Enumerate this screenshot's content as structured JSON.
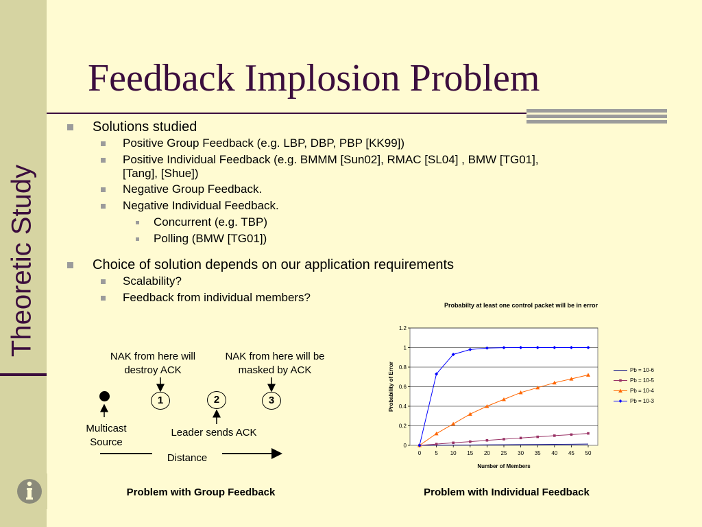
{
  "sidebar": {
    "vertical_title": "Theoretic Study",
    "info_icon": "info-icon"
  },
  "title": "Feedback Implosion Problem",
  "bullets": {
    "b1": "Solutions studied",
    "b1_s1": "Positive Group Feedback (e.g. LBP, DBP, PBP [KK99])",
    "b1_s2_line1": "Positive Individual Feedback (e.g. BMMM [Sun02], RMAC [SL04] , BMW [TG01],",
    "b1_s2_line2": "[Tang], [Shue])",
    "b1_s3": "Negative Group Feedback.",
    "b1_s4": "Negative Individual Feedback.",
    "b1_s4_t1": "Concurrent (e.g. TBP)",
    "b1_s4_t2": "Polling (BMW [TG01])",
    "b2": "Choice of solution depends on our application requirements",
    "b2_s1": "Scalability?",
    "b2_s2": "Feedback from individual members?"
  },
  "diagram": {
    "nak1_line1": "NAK from here will",
    "nak1_line2": "destroy ACK",
    "nak2_line1": "NAK from here will be",
    "nak2_line2": "masked by ACK",
    "source_line1": "Multicast",
    "source_line2": "Source",
    "node1": "1",
    "node2": "2",
    "node3": "3",
    "leader": "Leader sends ACK",
    "distance": "Distance",
    "caption": "Problem with Group Feedback"
  },
  "chart_caption": "Problem with Individual Feedback",
  "chart_data": {
    "type": "line",
    "title": "Probabilty at least one control packet will be in error",
    "xlabel": "Number of Members",
    "ylabel": "Probability of Error",
    "x": [
      0,
      5,
      10,
      15,
      20,
      25,
      30,
      35,
      40,
      45,
      50
    ],
    "ylim": [
      0,
      1.2
    ],
    "yticks": [
      "0",
      "0.2",
      "0.4",
      "0.6",
      "0.8",
      "1",
      "1.2"
    ],
    "yticks_values": [
      0,
      0.2,
      0.4,
      0.6,
      0.8,
      1,
      1.2
    ],
    "grid": true,
    "legend_position": "right",
    "series": [
      {
        "name": "Pb = 10-6",
        "color": "#000080",
        "marker": "none",
        "values": [
          0,
          0.0013,
          0.0026,
          0.0039,
          0.0052,
          0.0065,
          0.0078,
          0.0091,
          0.0104,
          0.0117,
          0.013
        ]
      },
      {
        "name": "Pb = 10-5",
        "color": "#993366",
        "marker": "square",
        "values": [
          0,
          0.013,
          0.026,
          0.038,
          0.051,
          0.063,
          0.075,
          0.087,
          0.099,
          0.11,
          0.122
        ]
      },
      {
        "name": "Pb = 10-4",
        "color": "#ff6600",
        "marker": "triangle",
        "values": [
          0,
          0.12,
          0.22,
          0.32,
          0.4,
          0.47,
          0.54,
          0.59,
          0.64,
          0.68,
          0.72
        ]
      },
      {
        "name": "Pb = 10-3",
        "color": "#0000ff",
        "marker": "diamond",
        "values": [
          0,
          0.73,
          0.93,
          0.98,
          0.995,
          0.999,
          1.0,
          1.0,
          1.0,
          1.0,
          1.0
        ]
      }
    ]
  }
}
